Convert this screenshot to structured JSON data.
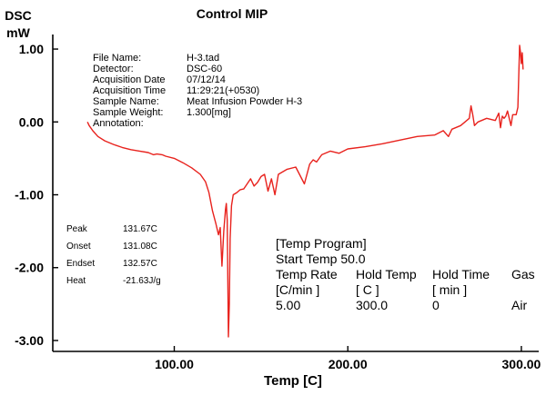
{
  "chart_data": {
    "type": "line",
    "title": "Control MIP",
    "ylabel": "DSC",
    "yunit": "mW",
    "xlabel": "Temp  [C]",
    "xlim": [
      30,
      310
    ],
    "ylim": [
      -3.15,
      1.2
    ],
    "x_ticks": [
      {
        "value": 100,
        "label": "100.00"
      },
      {
        "value": 200,
        "label": "200.00"
      },
      {
        "value": 300,
        "label": "300.00"
      }
    ],
    "y_ticks": [
      {
        "value": 1,
        "label": "1.00"
      },
      {
        "value": 0,
        "label": "0.00"
      },
      {
        "value": -1,
        "label": "-1.00"
      },
      {
        "value": -2,
        "label": "-2.00"
      },
      {
        "value": -3,
        "label": "-3.00"
      }
    ],
    "grid": false,
    "line_color": "#e8221d",
    "series": [
      {
        "x": [
          50,
          51,
          53,
          56,
          60,
          65,
          70,
          75,
          80,
          85,
          88,
          90,
          93,
          95,
          100,
          105,
          110,
          115,
          118,
          120,
          122,
          124,
          125.5,
          126.5,
          127.5,
          128.5,
          129.5,
          130,
          130.5,
          131.2,
          131.7,
          132.2,
          133,
          134,
          136,
          138,
          140,
          142,
          144,
          146,
          148,
          150,
          152,
          154,
          156,
          158,
          160,
          165,
          170,
          175,
          178,
          180,
          182,
          185,
          190,
          195,
          200,
          210,
          220,
          230,
          240,
          250,
          255,
          258,
          260,
          265,
          270,
          271,
          272,
          273,
          275,
          280,
          285,
          287,
          288,
          289,
          290,
          291,
          292,
          293,
          294,
          295,
          297,
          298,
          299,
          299.5,
          300,
          300.5,
          301
        ],
        "y": [
          0.0,
          -0.05,
          -0.12,
          -0.2,
          -0.26,
          -0.31,
          -0.35,
          -0.38,
          -0.4,
          -0.42,
          -0.45,
          -0.44,
          -0.45,
          -0.47,
          -0.5,
          -0.56,
          -0.63,
          -0.72,
          -0.82,
          -0.97,
          -1.22,
          -1.4,
          -1.55,
          -1.45,
          -1.98,
          -1.5,
          -1.2,
          -1.12,
          -1.35,
          -2.95,
          -2.5,
          -1.6,
          -1.15,
          -1.0,
          -0.97,
          -0.93,
          -0.92,
          -0.85,
          -0.78,
          -0.88,
          -0.83,
          -0.75,
          -0.72,
          -0.95,
          -0.78,
          -1.0,
          -0.72,
          -0.65,
          -0.62,
          -0.85,
          -0.58,
          -0.52,
          -0.55,
          -0.45,
          -0.4,
          -0.43,
          -0.37,
          -0.34,
          -0.3,
          -0.25,
          -0.2,
          -0.18,
          -0.12,
          -0.2,
          -0.1,
          -0.05,
          0.05,
          0.22,
          0.1,
          -0.05,
          0.0,
          0.05,
          0.02,
          0.12,
          -0.08,
          0.08,
          0.05,
          0.08,
          0.15,
          0.05,
          -0.05,
          0.1,
          0.1,
          0.2,
          1.05,
          0.95,
          0.8,
          0.95,
          0.72
        ]
      }
    ]
  },
  "file_info": [
    {
      "label": "File Name:",
      "value": "H-3.tad"
    },
    {
      "label": "Detector:",
      "value": "DSC-60"
    },
    {
      "label": "Acquisition Date",
      "value": "07/12/14"
    },
    {
      "label": "Acquisition Time",
      "value": "11:29:21(+0530)"
    },
    {
      "label": "Sample Name:",
      "value": "Meat Infusion Powder H-3"
    },
    {
      "label": "Sample Weight:",
      "value": "1.300[mg]"
    },
    {
      "label": "Annotation:",
      "value": ""
    }
  ],
  "peak_results": [
    {
      "label": "Peak",
      "value": "131.67C"
    },
    {
      "label": "Onset",
      "value": "131.08C"
    },
    {
      "label": "Endset",
      "value": "132.57C"
    },
    {
      "label": "Heat",
      "value": "-21.63J/g"
    }
  ],
  "temp_program": {
    "heading": "[Temp Program]",
    "start": "Start Temp 50.0",
    "headers": [
      "Temp Rate",
      "Hold Temp",
      "Hold Time",
      "Gas"
    ],
    "units": [
      "[C/min ]",
      "[  C  ]",
      "[  min  ]"
    ],
    "rows": [
      [
        "5.00",
        "300.0",
        "0",
        "Air"
      ]
    ]
  }
}
